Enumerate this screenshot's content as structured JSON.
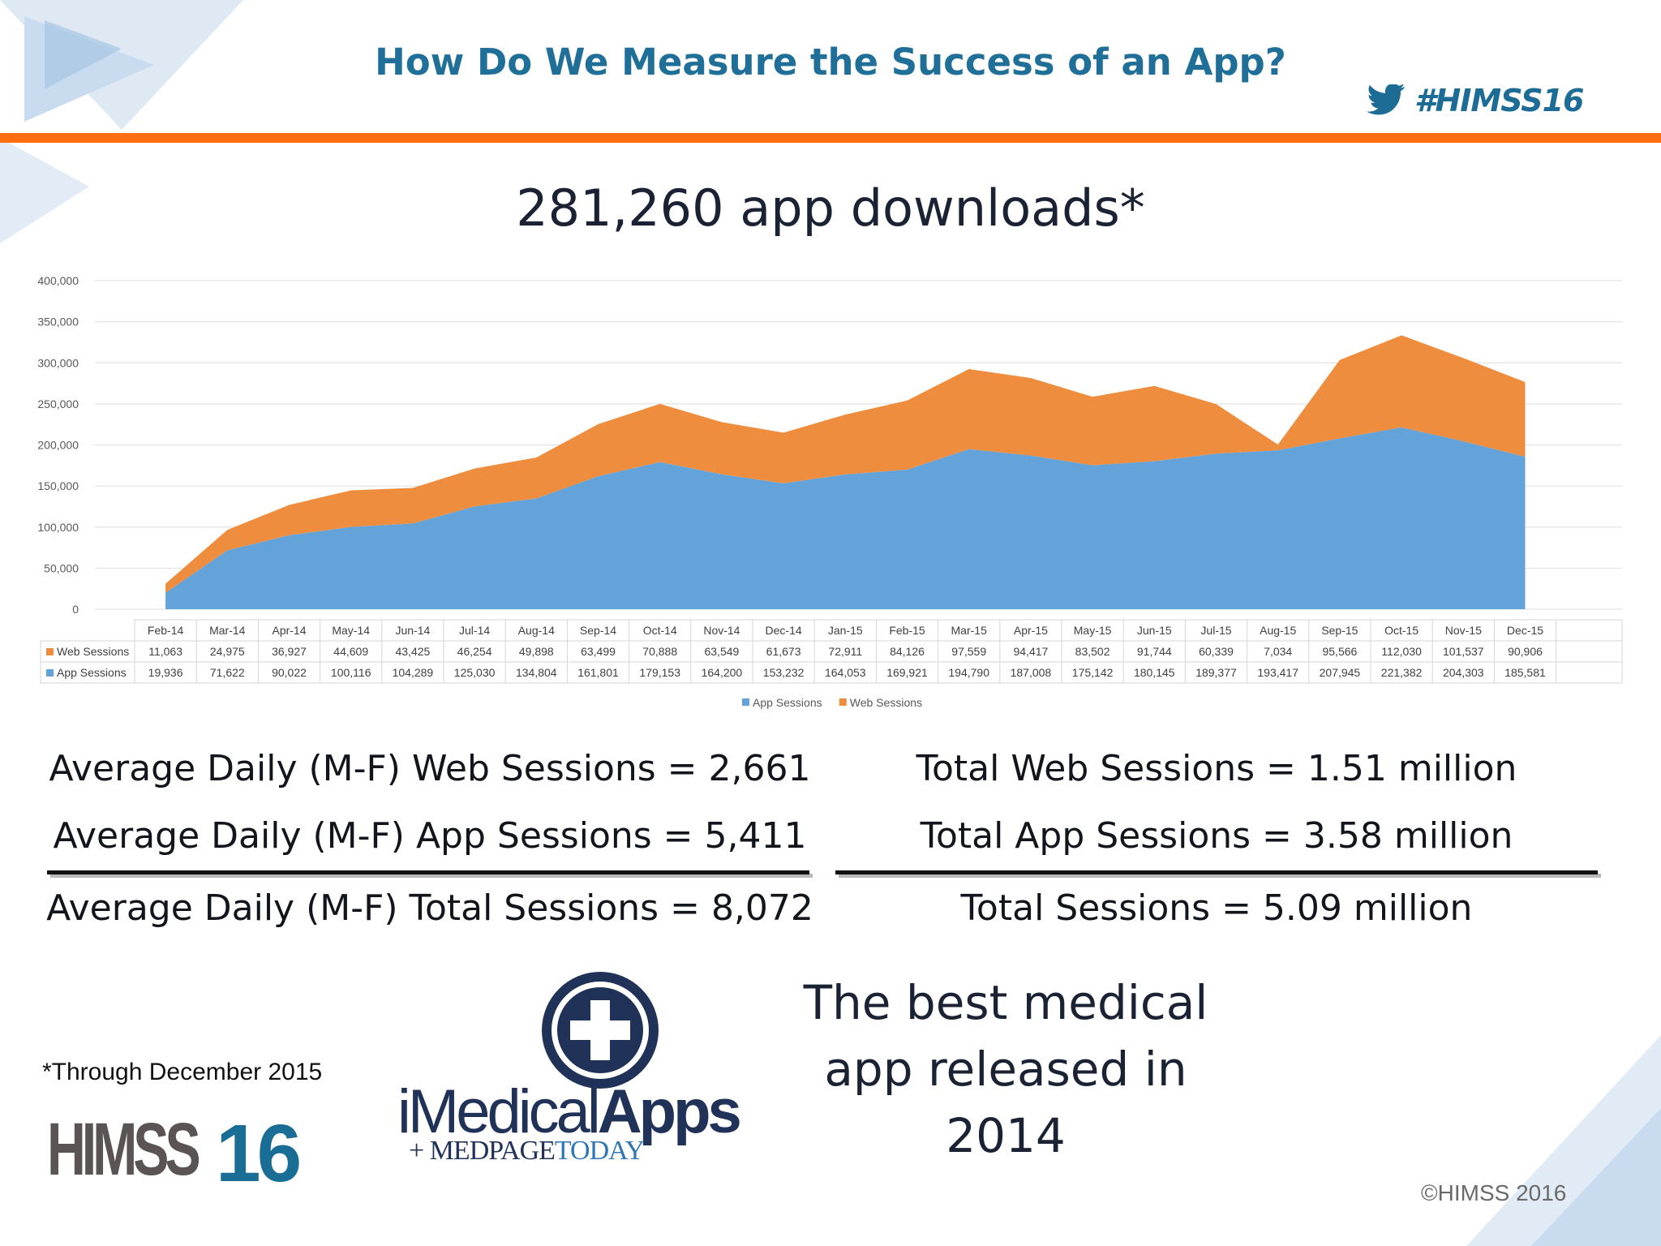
{
  "slide": {
    "title": "How Do We Measure the Success of an App?",
    "hashtag": "#HIMSS16",
    "headline": "281,260 app downloads*",
    "footnote": "*Through December 2015",
    "copyright": "©HIMSS 2016",
    "colors": {
      "title": "#1f6f99",
      "accent_bar": "#ff6f12",
      "app": "#64a3da",
      "web": "#ee8d3e"
    }
  },
  "stats": {
    "left": {
      "web": "Average Daily (M-F) Web Sessions = 2,661",
      "app": "Average Daily (M-F) App Sessions = 5,411",
      "total": "Average Daily (M-F) Total Sessions = 8,072"
    },
    "right": {
      "web": "Total Web Sessions = 1.51 million",
      "app": "Total App Sessions = 3.58 million",
      "total": "Total Sessions = 5.09 million"
    }
  },
  "tagline": [
    "The best medical",
    "app released in",
    "2014"
  ],
  "logos": {
    "himss_word": "HIMSS",
    "himss_number": "16",
    "imedical_light": "iMedical",
    "imedical_bold": "Apps",
    "medpage_plus": "+",
    "medpage": "MEDPAGE",
    "today": "TODAY"
  },
  "chart_data": {
    "type": "area",
    "stacked": true,
    "categories": [
      "Feb-14",
      "Mar-14",
      "Apr-14",
      "May-14",
      "Jun-14",
      "Jul-14",
      "Aug-14",
      "Sep-14",
      "Oct-14",
      "Nov-14",
      "Dec-14",
      "Jan-15",
      "Feb-15",
      "Mar-15",
      "Apr-15",
      "May-15",
      "Jun-15",
      "Jul-15",
      "Aug-15",
      "Sep-15",
      "Oct-15",
      "Nov-15",
      "Dec-15"
    ],
    "series": [
      {
        "name": "Web Sessions",
        "color": "#ee8d3e",
        "values": [
          11063,
          24975,
          36927,
          44609,
          43425,
          46254,
          49898,
          63499,
          70888,
          63549,
          61673,
          72911,
          84126,
          97559,
          94417,
          83502,
          91744,
          60339,
          7034,
          95566,
          112030,
          101537,
          90906
        ]
      },
      {
        "name": "App Sessions",
        "color": "#64a3da",
        "values": [
          19936,
          71622,
          90022,
          100116,
          104289,
          125030,
          134804,
          161801,
          179153,
          164200,
          153232,
          164053,
          169921,
          194790,
          187008,
          175142,
          180145,
          189377,
          193417,
          207945,
          221382,
          204303,
          185581
        ]
      }
    ],
    "stack_order": [
      "App Sessions",
      "Web Sessions"
    ],
    "ylim": [
      0,
      400000
    ],
    "yticks": [
      0,
      50000,
      100000,
      150000,
      200000,
      250000,
      300000,
      350000,
      400000
    ],
    "ytick_labels": [
      "0",
      "50,000",
      "100,000",
      "150,000",
      "200,000",
      "250,000",
      "300,000",
      "350,000",
      "400,000"
    ],
    "grid": true,
    "data_table": true,
    "legend": {
      "position": "bottom",
      "entries": [
        "App Sessions",
        "Web Sessions"
      ]
    }
  }
}
